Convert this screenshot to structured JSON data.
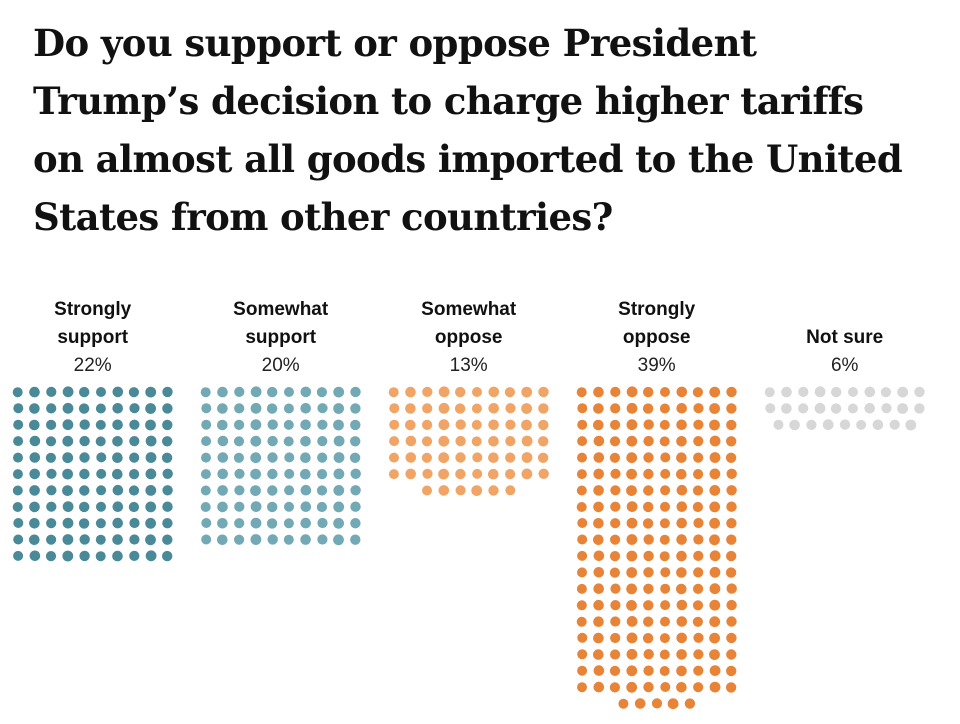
{
  "title_lines": [
    "Do you support or oppose President",
    "Trump’s decision to charge higher tariffs",
    "on almost all goods imported to the United",
    "States from other countries?"
  ],
  "chart_data": {
    "type": "dot-plot",
    "unit": "percent",
    "categories": [
      {
        "label": "Strongly support",
        "label_lines": [
          "Strongly",
          "support"
        ],
        "percent_label": "22%",
        "value": 22,
        "dot_count": 110,
        "color": "#4a8a98"
      },
      {
        "label": "Somewhat support",
        "label_lines": [
          "Somewhat",
          "support"
        ],
        "percent_label": "20%",
        "value": 20,
        "dot_count": 100,
        "color": "#72a9b5"
      },
      {
        "label": "Somewhat oppose",
        "label_lines": [
          "Somewhat",
          "oppose"
        ],
        "percent_label": "13%",
        "value": 13,
        "dot_count": 66,
        "color": "#f0a567"
      },
      {
        "label": "Strongly oppose",
        "label_lines": [
          "Strongly",
          "oppose"
        ],
        "percent_label": "39%",
        "value": 39,
        "dot_count": 195,
        "color": "#e88437"
      },
      {
        "label": "Not sure",
        "label_lines": [
          "Not sure"
        ],
        "percent_label": "6%",
        "value": 6,
        "dot_count": 29,
        "color": "#d7d7d7"
      }
    ]
  }
}
